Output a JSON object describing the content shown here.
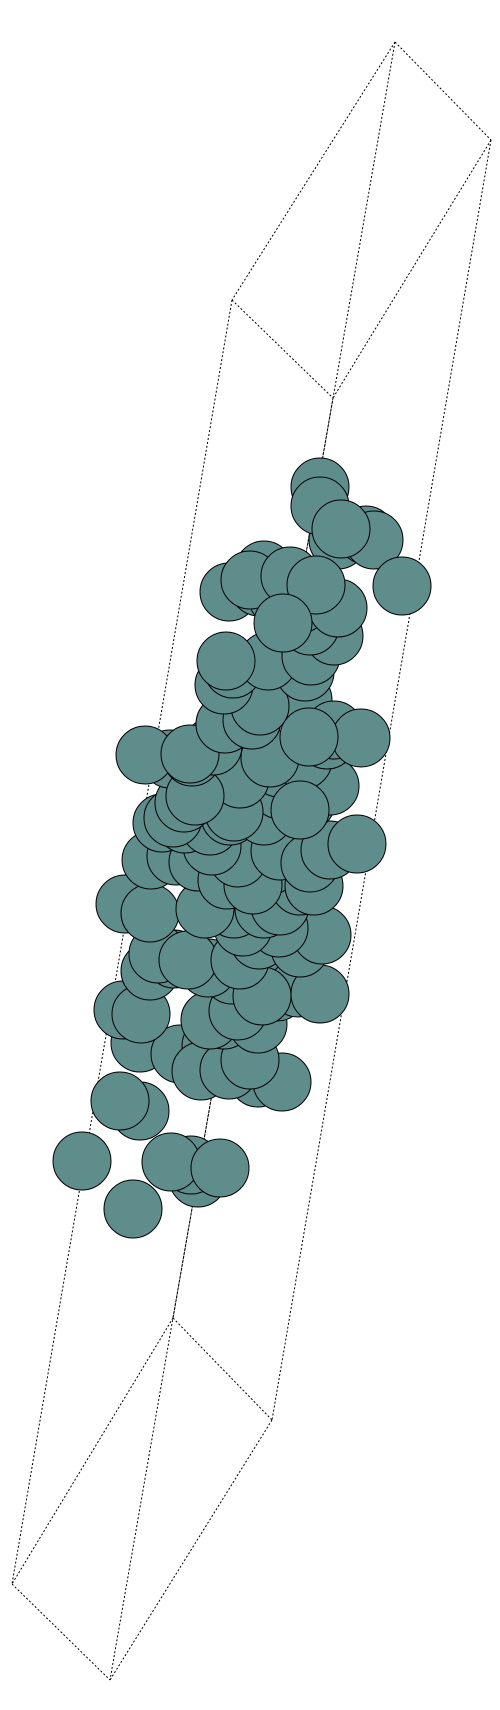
{
  "figure": {
    "type": "3d-structure-render",
    "atom_count": 110,
    "colors": {
      "atom_fill": "#5f8d8b",
      "atom_stroke": "#000000",
      "cell_edge": "#000000",
      "background": "#ffffff"
    }
  }
}
